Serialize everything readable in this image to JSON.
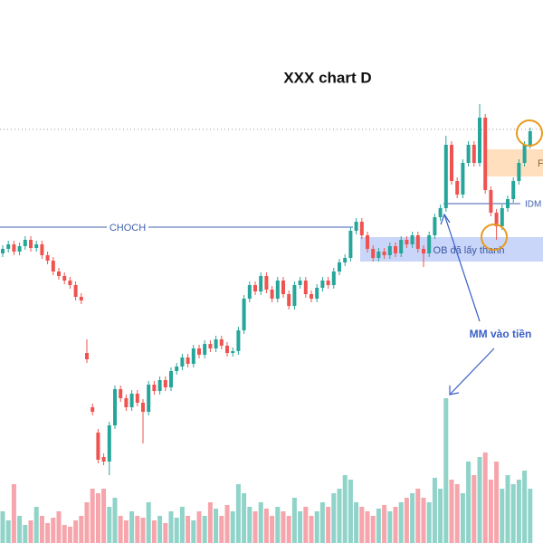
{
  "chart_data": {
    "type": "candlestick",
    "title": "XXX chart D",
    "annotations": {
      "choch": "CHOCH",
      "idm": "IDM",
      "ob": "OB đã lấy thanh",
      "fvg": "F",
      "mm": "MM vào tiền"
    },
    "up_color": "#26a69a",
    "down_color": "#ef5350",
    "up_volume_color": "#8fd3c9",
    "down_volume_color": "#f5a5ab",
    "ylim": [
      0,
      600
    ],
    "y2lim": [
      0,
      600
    ],
    "open": [
      320,
      325,
      330,
      322,
      328,
      335,
      326,
      330,
      318,
      312,
      300,
      295,
      290,
      285,
      272,
      210,
      150,
      122,
      95,
      90,
      130,
      170,
      160,
      150,
      165,
      155,
      145,
      175,
      168,
      180,
      172,
      190,
      195,
      205,
      198,
      215,
      208,
      220,
      215,
      225,
      218,
      210,
      212,
      235,
      270,
      285,
      278,
      295,
      280,
      270,
      290,
      275,
      262,
      285,
      290,
      275,
      270,
      282,
      290,
      285,
      300,
      310,
      315,
      345,
      355,
      340,
      325,
      315,
      322,
      318,
      328,
      320,
      335,
      330,
      340,
      325,
      320,
      340,
      360,
      370,
      440,
      400,
      385,
      420,
      440,
      420,
      470,
      390,
      365,
      350,
      370,
      380,
      400,
      420,
      440
    ],
    "high": [
      329,
      334,
      334,
      332,
      339,
      339,
      334,
      334,
      322,
      316,
      304,
      299,
      294,
      289,
      276,
      225,
      154,
      126,
      99,
      134,
      174,
      174,
      164,
      169,
      169,
      159,
      179,
      179,
      184,
      184,
      194,
      199,
      209,
      209,
      219,
      219,
      224,
      224,
      229,
      229,
      222,
      216,
      239,
      274,
      289,
      289,
      299,
      299,
      284,
      294,
      294,
      279,
      289,
      294,
      294,
      279,
      286,
      294,
      294,
      304,
      314,
      319,
      349,
      359,
      359,
      344,
      329,
      326,
      326,
      332,
      332,
      339,
      339,
      344,
      344,
      329,
      344,
      364,
      374,
      450,
      444,
      404,
      424,
      444,
      444,
      485,
      474,
      394,
      369,
      374,
      384,
      404,
      424,
      444,
      459
    ],
    "low": [
      316,
      321,
      318,
      318,
      324,
      322,
      322,
      314,
      308,
      296,
      291,
      286,
      281,
      268,
      264,
      199,
      141,
      88,
      86,
      75,
      126,
      156,
      146,
      146,
      151,
      110,
      141,
      164,
      164,
      168,
      168,
      186,
      191,
      194,
      194,
      204,
      204,
      211,
      211,
      214,
      206,
      206,
      208,
      231,
      266,
      274,
      274,
      276,
      266,
      266,
      271,
      258,
      258,
      281,
      271,
      266,
      266,
      278,
      281,
      281,
      296,
      306,
      311,
      341,
      336,
      321,
      311,
      311,
      314,
      314,
      316,
      316,
      326,
      326,
      321,
      305,
      316,
      336,
      356,
      366,
      396,
      381,
      381,
      416,
      416,
      416,
      386,
      361,
      335,
      346,
      366,
      376,
      396,
      416,
      436
    ],
    "close": [
      325,
      330,
      322,
      328,
      335,
      326,
      330,
      318,
      312,
      300,
      295,
      290,
      285,
      272,
      268,
      203,
      145,
      92,
      90,
      130,
      170,
      160,
      150,
      165,
      155,
      145,
      175,
      168,
      180,
      172,
      190,
      195,
      205,
      198,
      215,
      208,
      220,
      215,
      225,
      218,
      210,
      212,
      235,
      270,
      285,
      278,
      295,
      280,
      270,
      290,
      275,
      262,
      285,
      290,
      275,
      270,
      282,
      290,
      285,
      300,
      310,
      315,
      345,
      355,
      340,
      325,
      315,
      322,
      318,
      328,
      320,
      335,
      330,
      340,
      325,
      320,
      340,
      360,
      370,
      440,
      400,
      385,
      420,
      440,
      420,
      470,
      390,
      365,
      350,
      370,
      380,
      400,
      420,
      440,
      455
    ],
    "volume": [
      35,
      25,
      65,
      30,
      20,
      25,
      40,
      30,
      22,
      28,
      35,
      20,
      18,
      25,
      30,
      45,
      60,
      55,
      60,
      40,
      50,
      30,
      25,
      35,
      30,
      28,
      45,
      25,
      30,
      22,
      35,
      28,
      40,
      30,
      25,
      35,
      30,
      45,
      38,
      30,
      42,
      35,
      65,
      55,
      40,
      35,
      45,
      38,
      30,
      40,
      35,
      30,
      50,
      35,
      40,
      30,
      35,
      45,
      40,
      55,
      60,
      75,
      70,
      45,
      40,
      35,
      30,
      38,
      42,
      35,
      40,
      45,
      50,
      55,
      60,
      50,
      45,
      72,
      60,
      160,
      70,
      65,
      55,
      90,
      75,
      95,
      100,
      70,
      90,
      60,
      75,
      65,
      70,
      80,
      60
    ]
  }
}
